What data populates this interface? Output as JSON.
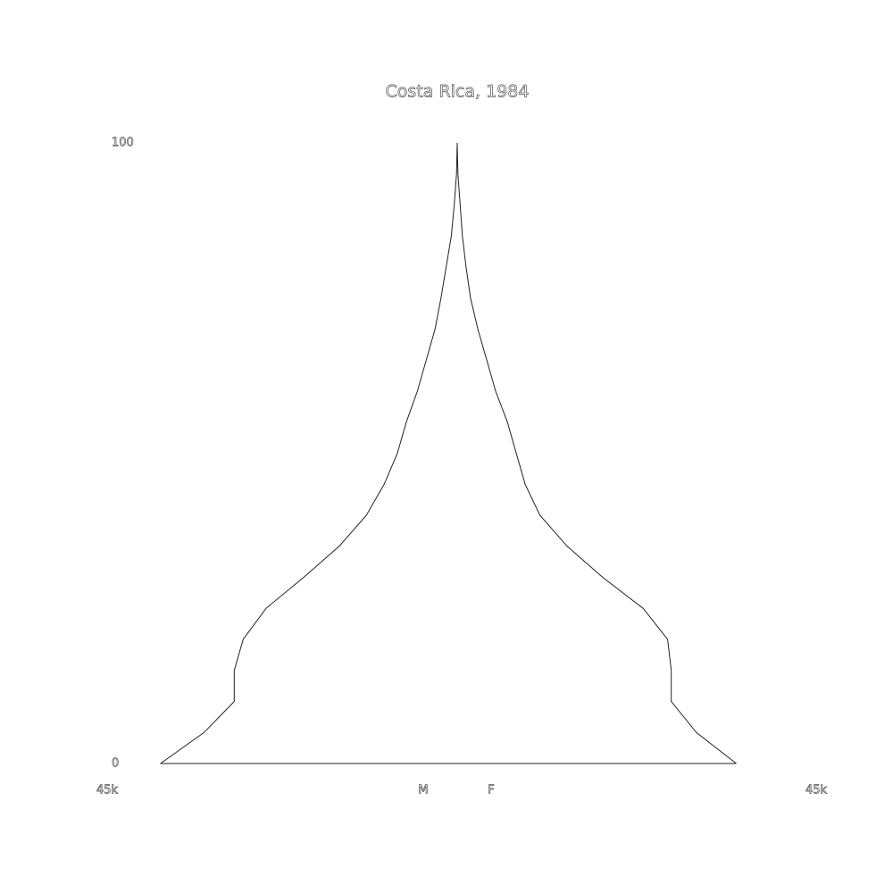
{
  "chart_data": {
    "type": "population-pyramid",
    "title": "Costa Rica, 1984",
    "ages": [
      0,
      5,
      10,
      15,
      20,
      25,
      30,
      35,
      40,
      45,
      50,
      55,
      60,
      65,
      70,
      75,
      80,
      85,
      90,
      95,
      100
    ],
    "series": [
      {
        "name": "M",
        "side": "left",
        "color": "#222222",
        "values": [
          40200,
          34300,
          30200,
          30200,
          29000,
          25900,
          20800,
          16000,
          12300,
          9900,
          8100,
          6900,
          5400,
          4200,
          3000,
          2200,
          1500,
          800,
          400,
          100,
          0
        ]
      },
      {
        "name": "F",
        "side": "right",
        "color": "#222222",
        "values": [
          37800,
          32400,
          29000,
          29000,
          28500,
          25200,
          19700,
          14900,
          11200,
          9200,
          8000,
          6800,
          5200,
          4000,
          2800,
          1800,
          1200,
          700,
          400,
          100,
          0
        ]
      }
    ],
    "xlim": [
      -45000,
      45000
    ],
    "xticks": [
      {
        "value": -45000,
        "label": "45k"
      },
      {
        "value": 45000,
        "label": "45k"
      }
    ],
    "ylim": [
      0,
      100
    ],
    "yticks": [
      0,
      100
    ]
  }
}
